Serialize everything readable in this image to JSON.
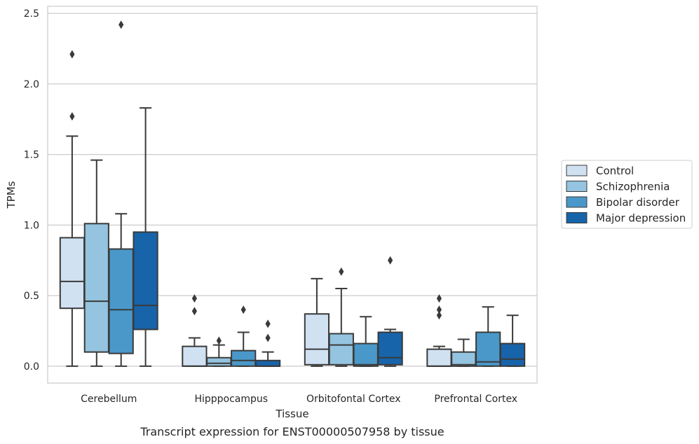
{
  "caption": "Transcript expression for ENST00000507958 by tissue",
  "chart_data": {
    "type": "box",
    "xlabel": "Tissue",
    "ylabel": "TPMs",
    "ylim": [
      -0.12,
      2.55
    ],
    "yticks": [
      "0.0",
      "0.5",
      "1.0",
      "1.5",
      "2.0",
      "2.5"
    ],
    "grid": true,
    "legend_position": "right",
    "categories": [
      "Cerebellum",
      "Hipppocampus",
      "Orbitofontal Cortex",
      "Prefrontal Cortex"
    ],
    "series": [
      {
        "name": "Control",
        "color": "#d0e1f2",
        "boxes": [
          {
            "whislo": 0.0,
            "q1": 0.41,
            "med": 0.6,
            "q3": 0.91,
            "whishi": 1.63,
            "fliers": [
              1.77,
              2.21
            ]
          },
          {
            "whislo": 0.0,
            "q1": 0.0,
            "med": 0.0,
            "q3": 0.14,
            "whishi": 0.2,
            "fliers": [
              0.39,
              0.48
            ]
          },
          {
            "whislo": 0.0,
            "q1": 0.01,
            "med": 0.12,
            "q3": 0.37,
            "whishi": 0.62,
            "fliers": []
          },
          {
            "whislo": 0.0,
            "q1": 0.0,
            "med": 0.0,
            "q3": 0.12,
            "whishi": 0.14,
            "fliers": [
              0.36,
              0.4,
              0.48
            ]
          }
        ]
      },
      {
        "name": "Schizophrenia",
        "color": "#94c4df",
        "boxes": [
          {
            "whislo": 0.0,
            "q1": 0.1,
            "med": 0.46,
            "q3": 1.01,
            "whishi": 1.46,
            "fliers": []
          },
          {
            "whislo": 0.0,
            "q1": 0.0,
            "med": 0.02,
            "q3": 0.06,
            "whishi": 0.15,
            "fliers": [
              0.18
            ]
          },
          {
            "whislo": 0.0,
            "q1": 0.01,
            "med": 0.15,
            "q3": 0.23,
            "whishi": 0.55,
            "fliers": [
              0.67
            ]
          },
          {
            "whislo": 0.0,
            "q1": 0.0,
            "med": 0.01,
            "q3": 0.1,
            "whishi": 0.19,
            "fliers": []
          }
        ]
      },
      {
        "name": "Bipolar disorder",
        "color": "#4a98c9",
        "boxes": [
          {
            "whislo": 0.0,
            "q1": 0.09,
            "med": 0.4,
            "q3": 0.83,
            "whishi": 1.08,
            "fliers": [
              2.42
            ]
          },
          {
            "whislo": 0.0,
            "q1": 0.0,
            "med": 0.04,
            "q3": 0.11,
            "whishi": 0.24,
            "fliers": [
              0.4
            ]
          },
          {
            "whislo": 0.0,
            "q1": 0.0,
            "med": 0.01,
            "q3": 0.16,
            "whishi": 0.35,
            "fliers": []
          },
          {
            "whislo": 0.0,
            "q1": 0.0,
            "med": 0.03,
            "q3": 0.24,
            "whishi": 0.42,
            "fliers": []
          }
        ]
      },
      {
        "name": "Major depression",
        "color": "#1764ab",
        "boxes": [
          {
            "whislo": 0.0,
            "q1": 0.26,
            "med": 0.43,
            "q3": 0.95,
            "whishi": 1.83,
            "fliers": []
          },
          {
            "whislo": 0.0,
            "q1": 0.0,
            "med": 0.0,
            "q3": 0.04,
            "whishi": 0.1,
            "fliers": [
              0.2,
              0.3
            ]
          },
          {
            "whislo": 0.0,
            "q1": 0.01,
            "med": 0.06,
            "q3": 0.24,
            "whishi": 0.26,
            "fliers": [
              0.75
            ]
          },
          {
            "whislo": 0.0,
            "q1": 0.0,
            "med": 0.05,
            "q3": 0.16,
            "whishi": 0.36,
            "fliers": []
          }
        ]
      }
    ]
  }
}
